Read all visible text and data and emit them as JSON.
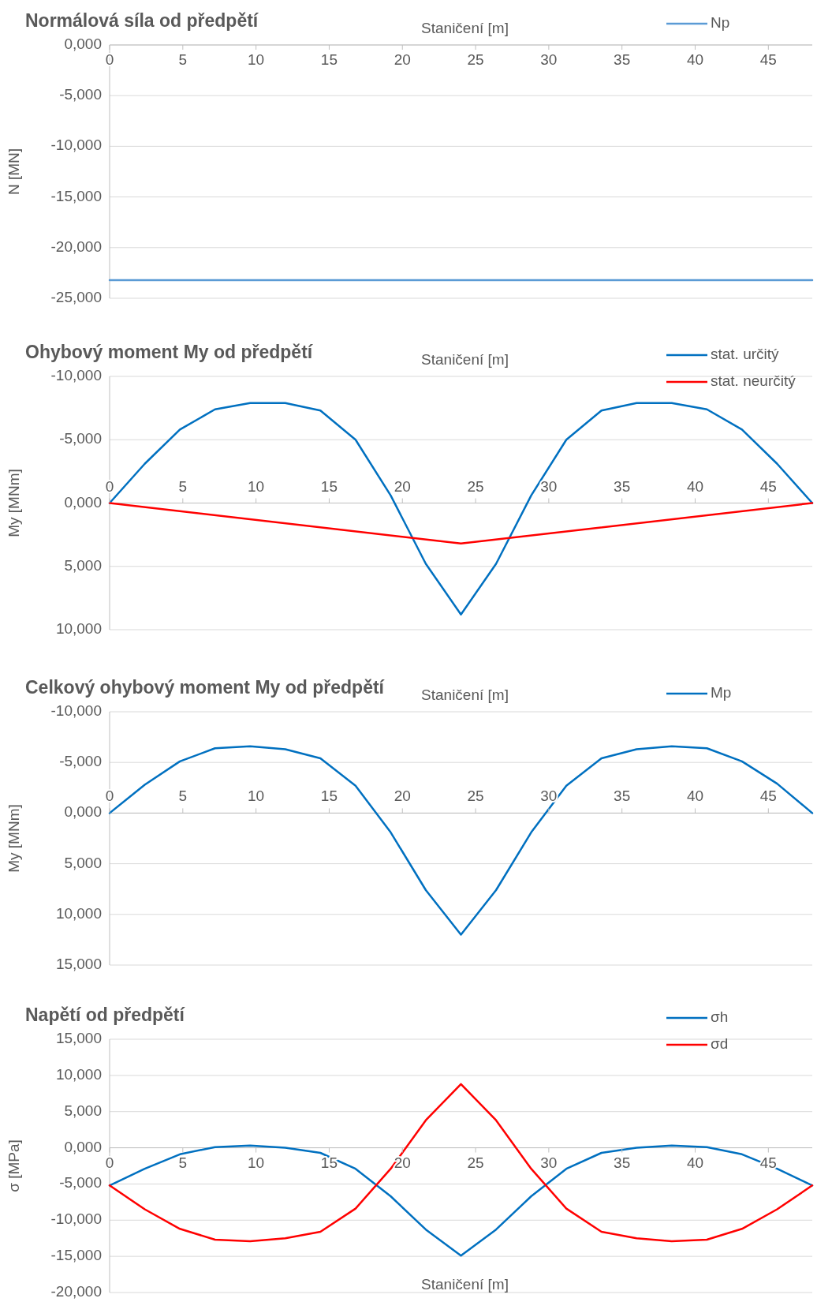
{
  "chart_data": [
    {
      "type": "line",
      "title": "Normálová síla od předpětí",
      "xlabel": "Staničení [m]",
      "ylabel": "N [MN]",
      "x": [
        0,
        2.4,
        4.8,
        7.2,
        9.6,
        12,
        14.4,
        16.8,
        19.2,
        21.6,
        24,
        26.4,
        28.8,
        31.2,
        33.6,
        36,
        38.4,
        40.8,
        43.2,
        45.6,
        48
      ],
      "xlim": [
        0,
        48
      ],
      "xticks": [
        0,
        5,
        10,
        15,
        20,
        25,
        30,
        35,
        40,
        45
      ],
      "ylim": [
        -25,
        0
      ],
      "yticks": [
        {
          "value": 0,
          "label": "0,000"
        },
        {
          "value": -5,
          "label": "-5,000"
        },
        {
          "value": -10,
          "label": "-10,000"
        },
        {
          "value": -15,
          "label": "-15,000"
        },
        {
          "value": -20,
          "label": "-20,000"
        },
        {
          "value": -25,
          "label": "-25,000"
        }
      ],
      "grid": "y",
      "legend": "top right",
      "series": [
        {
          "name": "Np",
          "color": "#5b9bd5",
          "values": [
            -23.2,
            -23.2,
            -23.2,
            -23.2,
            -23.2,
            -23.2,
            -23.2,
            -23.2,
            -23.2,
            -23.2,
            -23.2,
            -23.2,
            -23.2,
            -23.2,
            -23.2,
            -23.2,
            -23.2,
            -23.2,
            -23.2,
            -23.2,
            -23.2
          ]
        }
      ]
    },
    {
      "type": "line",
      "title": "Ohybový moment My od předpětí",
      "xlabel": "Staničení [m]",
      "ylabel": "My [MNm]",
      "x": [
        0,
        2.4,
        4.8,
        7.2,
        9.6,
        12,
        14.4,
        16.8,
        19.2,
        21.6,
        24,
        26.4,
        28.8,
        31.2,
        33.6,
        36,
        38.4,
        40.8,
        43.2,
        45.6,
        48
      ],
      "xlim": [
        0,
        48
      ],
      "xticks": [
        0,
        5,
        10,
        15,
        20,
        25,
        30,
        35,
        40,
        45
      ],
      "ylim": [
        10,
        -10
      ],
      "yticks": [
        {
          "value": -10,
          "label": "-10,000"
        },
        {
          "value": -5,
          "label": "-5,000"
        },
        {
          "value": 0,
          "label": "0,000"
        },
        {
          "value": 5,
          "label": "5,000"
        },
        {
          "value": 10,
          "label": "10,000"
        }
      ],
      "grid": "y",
      "legend": "top right",
      "series": [
        {
          "name": "stat. určitý",
          "color": "#0070c0",
          "values": [
            0,
            -3.1,
            -5.8,
            -7.4,
            -7.9,
            -7.9,
            -7.3,
            -5.0,
            -0.6,
            4.8,
            8.8,
            4.8,
            -0.6,
            -5.0,
            -7.3,
            -7.9,
            -7.9,
            -7.4,
            -5.8,
            -3.1,
            0
          ]
        },
        {
          "name": "stat. neurčitý",
          "color": "#ff0000",
          "x": [
            0,
            24,
            48
          ],
          "values": [
            0,
            3.2,
            0
          ]
        }
      ]
    },
    {
      "type": "line",
      "title": "Celkový ohybový moment My od předpětí",
      "xlabel": "Staničení [m]",
      "ylabel": "My [MNm]",
      "x": [
        0,
        2.4,
        4.8,
        7.2,
        9.6,
        12,
        14.4,
        16.8,
        19.2,
        21.6,
        24,
        26.4,
        28.8,
        31.2,
        33.6,
        36,
        38.4,
        40.8,
        43.2,
        45.6,
        48
      ],
      "xlim": [
        0,
        48
      ],
      "xticks": [
        0,
        5,
        10,
        15,
        20,
        25,
        30,
        35,
        40,
        45
      ],
      "ylim": [
        15,
        -10
      ],
      "yticks": [
        {
          "value": -10,
          "label": "-10,000"
        },
        {
          "value": -5,
          "label": "-5,000"
        },
        {
          "value": 0,
          "label": "0,000"
        },
        {
          "value": 5,
          "label": "5,000"
        },
        {
          "value": 10,
          "label": "10,000"
        },
        {
          "value": 15,
          "label": "15,000"
        }
      ],
      "grid": "y",
      "legend": "top right",
      "series": [
        {
          "name": "Mp",
          "color": "#0070c0",
          "values": [
            0,
            -2.8,
            -5.1,
            -6.4,
            -6.6,
            -6.3,
            -5.4,
            -2.7,
            1.9,
            7.6,
            12.0,
            7.6,
            1.9,
            -2.7,
            -5.4,
            -6.3,
            -6.6,
            -6.4,
            -5.1,
            -2.9,
            0
          ]
        }
      ]
    },
    {
      "type": "line",
      "title": "Napětí od předpětí",
      "xlabel": "Staničení [m]",
      "ylabel": "σ [MPa]",
      "x": [
        0,
        2.4,
        4.8,
        7.2,
        9.6,
        12,
        14.4,
        16.8,
        19.2,
        21.6,
        24,
        26.4,
        28.8,
        31.2,
        33.6,
        36,
        38.4,
        40.8,
        43.2,
        45.6,
        48
      ],
      "xlim": [
        0,
        48
      ],
      "xticks": [
        0,
        5,
        10,
        15,
        20,
        25,
        30,
        35,
        40,
        45
      ],
      "ylim": [
        -20,
        15
      ],
      "yticks": [
        {
          "value": 15,
          "label": "15,000"
        },
        {
          "value": 10,
          "label": "10,000"
        },
        {
          "value": 5,
          "label": "5,000"
        },
        {
          "value": 0,
          "label": "0,000"
        },
        {
          "value": -5,
          "label": "-5,000"
        },
        {
          "value": -10,
          "label": "-10,000"
        },
        {
          "value": -15,
          "label": "-15,000"
        },
        {
          "value": -20,
          "label": "-20,000"
        }
      ],
      "grid": "y",
      "legend": "top right",
      "series": [
        {
          "name": "σh",
          "color": "#0070c0",
          "values": [
            -5.2,
            -2.9,
            -0.9,
            0.1,
            0.3,
            0,
            -0.7,
            -2.9,
            -6.7,
            -11.3,
            -14.9,
            -11.3,
            -6.7,
            -2.9,
            -0.7,
            0,
            0.3,
            0.1,
            -0.9,
            -2.9,
            -5.2
          ]
        },
        {
          "name": "σd",
          "color": "#ff0000",
          "values": [
            -5.2,
            -8.5,
            -11.2,
            -12.7,
            -12.9,
            -12.5,
            -11.6,
            -8.4,
            -2.9,
            3.8,
            8.8,
            3.8,
            -2.9,
            -8.4,
            -11.6,
            -12.5,
            -12.9,
            -12.7,
            -11.2,
            -8.5,
            -5.2
          ]
        }
      ]
    }
  ]
}
